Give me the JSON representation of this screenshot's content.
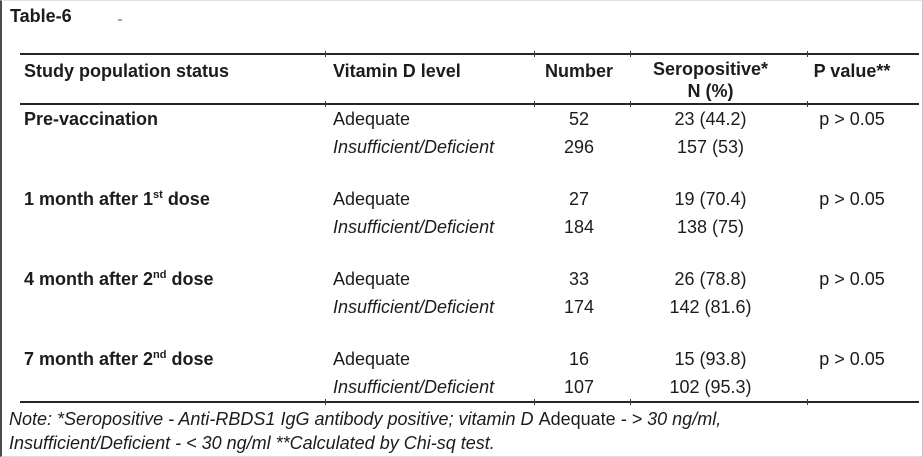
{
  "page": {
    "title": "Table-6"
  },
  "colors": {
    "background": "#ffffff",
    "text": "#1c1c1c",
    "rule": "#262626"
  },
  "table": {
    "header": {
      "study_population": "Study population status",
      "vitamin_d": "Vitamin D level",
      "number": "Number",
      "seropositive_line1": "Seropositive*",
      "seropositive_line2": "N (%)",
      "p_value": "P value**"
    },
    "groups": [
      {
        "status_pre": "Pre-vaccination",
        "status_sup": "",
        "status_post": "",
        "p_value": "p > 0.05",
        "rows": [
          {
            "level": "Adequate",
            "number": "52",
            "seropositive": "23 (44.2)"
          },
          {
            "level": "Insufficient/Deficient",
            "number": "296",
            "seropositive": "157 (53)"
          }
        ]
      },
      {
        "status_pre": "1 month after 1",
        "status_sup": "st",
        "status_post": " dose",
        "p_value": "p > 0.05",
        "rows": [
          {
            "level": "Adequate",
            "number": "27",
            "seropositive": "19 (70.4)"
          },
          {
            "level": "Insufficient/Deficient",
            "number": "184",
            "seropositive": "138 (75)"
          }
        ]
      },
      {
        "status_pre": "4 month after 2",
        "status_sup": "nd",
        "status_post": " dose",
        "p_value": "p > 0.05",
        "rows": [
          {
            "level": "Adequate",
            "number": "33",
            "seropositive": "26 (78.8)"
          },
          {
            "level": "Insufficient/Deficient",
            "number": "174",
            "seropositive": "142 (81.6)"
          }
        ]
      },
      {
        "status_pre": "7 month after 2",
        "status_sup": "nd",
        "status_post": " dose",
        "p_value": "p > 0.05",
        "rows": [
          {
            "level": "Adequate",
            "number": "16",
            "seropositive": "15 (93.8)"
          },
          {
            "level": "Insufficient/Deficient",
            "number": "107",
            "seropositive": "102 (95.3)"
          }
        ]
      }
    ]
  },
  "note": {
    "line1_part1": "Note: *Seropositive - Anti-RBDS1 IgG antibody positive; vitamin D ",
    "line1_part2": "Adequate",
    "line1_part3": " - > 30 ng/ml,",
    "line2": "Insufficient/Deficient - < 30 ng/ml **Calculated by Chi-sq test."
  }
}
